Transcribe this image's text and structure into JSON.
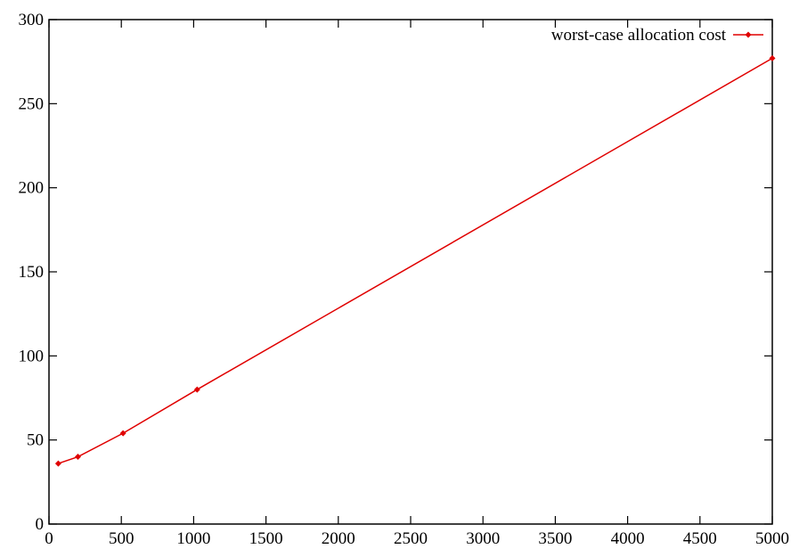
{
  "chart_data": {
    "type": "line",
    "title": "",
    "xlabel": "",
    "ylabel": "",
    "xlim": [
      0,
      5000
    ],
    "ylim": [
      0,
      300
    ],
    "xticks": [
      0,
      500,
      1000,
      1500,
      2000,
      2500,
      3000,
      3500,
      4000,
      4500,
      5000
    ],
    "yticks": [
      0,
      50,
      100,
      150,
      200,
      250,
      300
    ],
    "grid": false,
    "legend_position": "top-right",
    "series": [
      {
        "name": "worst-case allocation cost",
        "color": "#e00000",
        "marker": "diamond",
        "x": [
          64,
          200,
          512,
          1024,
          5000
        ],
        "y": [
          36,
          40,
          54,
          80,
          277
        ]
      }
    ]
  }
}
